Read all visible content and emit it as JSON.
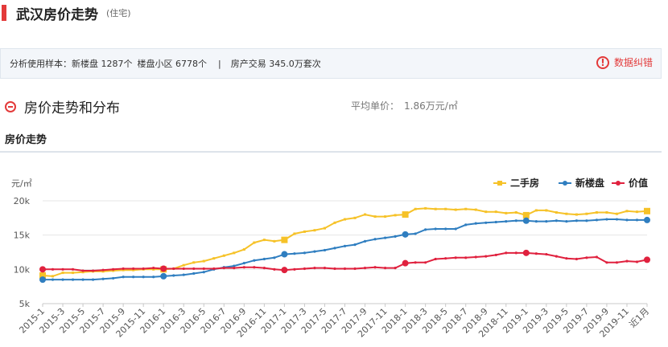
{
  "header": {
    "title": "武汉房价走势",
    "subtitle": "(住宅)"
  },
  "sample": {
    "label": "分析使用样本：",
    "new_houses": "新楼盘 1287个",
    "communities": "楼盘小区 6778个",
    "separator": "|",
    "transactions": "房产交易 345.0万套次",
    "correct_label": "数据纠错",
    "correct_icon": "!"
  },
  "section": {
    "title": "房价走势和分布",
    "avg_label": "平均单价：",
    "avg_value": "1.86万元/㎡"
  },
  "trend_label": "房价走势",
  "colors": {
    "ershou": "#f6c228",
    "xinloupan": "#2f7ec0",
    "jiazhi": "#e0213e",
    "grid": "#e6e6e6"
  },
  "chart_data": {
    "type": "line",
    "ylabel": "元/㎡",
    "ylim": [
      5000,
      20000
    ],
    "y_ticks": [
      5000,
      10000,
      15000,
      20000
    ],
    "y_tick_labels": [
      "5k",
      "10k",
      "15k",
      "20k"
    ],
    "x": [
      "2015-1",
      "2015-2",
      "2015-3",
      "2015-4",
      "2015-5",
      "2015-6",
      "2015-7",
      "2015-8",
      "2015-9",
      "2015-10",
      "2015-11",
      "2015-12",
      "2016-1",
      "2016-2",
      "2016-3",
      "2016-4",
      "2016-5",
      "2016-6",
      "2016-7",
      "2016-8",
      "2016-9",
      "2016-10",
      "2016-11",
      "2016-12",
      "2017-1",
      "2017-2",
      "2017-3",
      "2017-4",
      "2017-5",
      "2017-6",
      "2017-7",
      "2017-8",
      "2017-9",
      "2017-10",
      "2017-11",
      "2017-12",
      "2018-1",
      "2018-2",
      "2018-3",
      "2018-4",
      "2018-5",
      "2018-6",
      "2018-7",
      "2018-8",
      "2018-9",
      "2018-10",
      "2018-11",
      "2018-12",
      "2019-1",
      "2019-2",
      "2019-3",
      "2019-4",
      "2019-5",
      "2019-6",
      "2019-7",
      "2019-8",
      "2019-9",
      "2019-10",
      "2019-11",
      "2019-12",
      "近1月"
    ],
    "x_tick_labels": [
      "2015-1",
      "2015-3",
      "2015-5",
      "2015-7",
      "2015-9",
      "2015-11",
      "2016-1",
      "2016-3",
      "2016-5",
      "2016-7",
      "2016-9",
      "2016-11",
      "2017-1",
      "2017-3",
      "2017-5",
      "2017-7",
      "2017-9",
      "2017-11",
      "2018-1",
      "2018-3",
      "2018-5",
      "2018-7",
      "2018-9",
      "2018-11",
      "2019-1",
      "2019-3",
      "2019-5",
      "2019-7",
      "2019-9",
      "2019-11",
      "近1月"
    ],
    "legend_position": "top-right",
    "series": [
      {
        "name": "二手房",
        "color": "#f6c228",
        "marker": "square",
        "values": [
          9100,
          9000,
          9500,
          9500,
          9600,
          9700,
          9700,
          9800,
          9900,
          9900,
          10000,
          10000,
          10000,
          10100,
          10600,
          11000,
          11200,
          11600,
          12000,
          12400,
          12900,
          13900,
          14300,
          14100,
          14300,
          15200,
          15500,
          15700,
          16000,
          16800,
          17300,
          17500,
          18000,
          17700,
          17700,
          17900,
          18000,
          18800,
          18900,
          18800,
          18800,
          18700,
          18800,
          18700,
          18400,
          18400,
          18200,
          18300,
          17900,
          18600,
          18600,
          18300,
          18100,
          18000,
          18100,
          18300,
          18300,
          18100,
          18500,
          18400,
          18500
        ]
      },
      {
        "name": "新楼盘",
        "color": "#2f7ec0",
        "marker": "circle",
        "values": [
          8500,
          8500,
          8500,
          8500,
          8500,
          8500,
          8600,
          8700,
          8900,
          8900,
          8900,
          8900,
          9000,
          9100,
          9200,
          9400,
          9600,
          10000,
          10300,
          10500,
          10900,
          11300,
          11500,
          11700,
          12200,
          12300,
          12400,
          12600,
          12800,
          13100,
          13400,
          13600,
          14100,
          14400,
          14600,
          14800,
          15100,
          15200,
          15800,
          15900,
          15900,
          15900,
          16500,
          16700,
          16800,
          16900,
          17000,
          17100,
          17100,
          17000,
          17000,
          17100,
          17000,
          17100,
          17100,
          17200,
          17300,
          17300,
          17200,
          17200,
          17200
        ]
      },
      {
        "name": "价值",
        "color": "#e0213e",
        "marker": "circle",
        "values": [
          10000,
          10000,
          10000,
          10000,
          9800,
          9800,
          9900,
          10000,
          10100,
          10100,
          10100,
          10200,
          10100,
          10100,
          10100,
          10100,
          10100,
          10100,
          10200,
          10200,
          10300,
          10300,
          10200,
          10000,
          9900,
          10000,
          10100,
          10200,
          10200,
          10100,
          10100,
          10100,
          10200,
          10300,
          10200,
          10200,
          10900,
          11000,
          11000,
          11500,
          11600,
          11700,
          11700,
          11800,
          11900,
          12100,
          12400,
          12400,
          12400,
          12300,
          12200,
          11900,
          11600,
          11500,
          11700,
          11800,
          11000,
          11000,
          11200,
          11100,
          11400
        ]
      }
    ]
  }
}
